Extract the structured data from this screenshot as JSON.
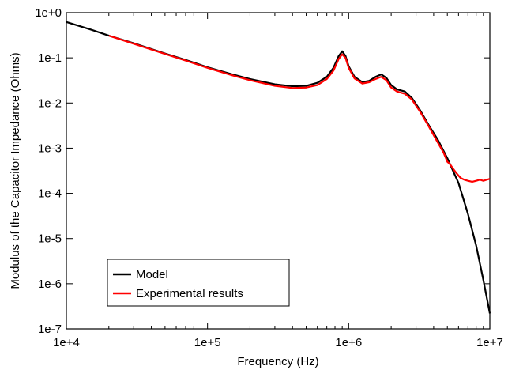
{
  "chart_data": {
    "type": "line",
    "title": "",
    "xlabel": "Frequency (Hz)",
    "ylabel": "Modulus of the Capacitor Impedance (Ohms)",
    "xscale": "log",
    "yscale": "log",
    "xlim": [
      10000,
      10000000
    ],
    "ylim": [
      1e-07,
      1
    ],
    "xticks": [
      {
        "value": 10000,
        "label": "1e+4"
      },
      {
        "value": 100000,
        "label": "1e+5"
      },
      {
        "value": 1000000,
        "label": "1e+6"
      },
      {
        "value": 10000000,
        "label": "1e+7"
      }
    ],
    "yticks": [
      {
        "value": 1e-07,
        "label": "1e-7"
      },
      {
        "value": 1e-06,
        "label": "1e-6"
      },
      {
        "value": 1e-05,
        "label": "1e-5"
      },
      {
        "value": 0.0001,
        "label": "1e-4"
      },
      {
        "value": 0.001,
        "label": "1e-3"
      },
      {
        "value": 0.01,
        "label": "1e-2"
      },
      {
        "value": 0.1,
        "label": "1e-1"
      },
      {
        "value": 1,
        "label": "1e+0"
      }
    ],
    "grid": false,
    "legend": {
      "position": "bottom-left"
    },
    "series": [
      {
        "name": "Model",
        "color": "#000000",
        "points": [
          [
            10000,
            0.62
          ],
          [
            12000,
            0.52
          ],
          [
            15000,
            0.42
          ],
          [
            20000,
            0.31
          ],
          [
            30000,
            0.21
          ],
          [
            50000,
            0.125
          ],
          [
            70000,
            0.09
          ],
          [
            100000,
            0.062
          ],
          [
            150000,
            0.043
          ],
          [
            200000,
            0.034
          ],
          [
            300000,
            0.026
          ],
          [
            400000,
            0.0235
          ],
          [
            500000,
            0.024
          ],
          [
            600000,
            0.028
          ],
          [
            700000,
            0.038
          ],
          [
            780000,
            0.06
          ],
          [
            850000,
            0.11
          ],
          [
            900000,
            0.14
          ],
          [
            950000,
            0.11
          ],
          [
            1000000,
            0.065
          ],
          [
            1100000,
            0.038
          ],
          [
            1250000,
            0.029
          ],
          [
            1400000,
            0.031
          ],
          [
            1550000,
            0.038
          ],
          [
            1700000,
            0.043
          ],
          [
            1850000,
            0.036
          ],
          [
            2000000,
            0.025
          ],
          [
            2200000,
            0.02
          ],
          [
            2500000,
            0.018
          ],
          [
            2800000,
            0.013
          ],
          [
            3200000,
            0.007
          ],
          [
            3700000,
            0.0032
          ],
          [
            4300000,
            0.0015
          ],
          [
            5000000,
            0.0006
          ],
          [
            6000000,
            0.00017
          ],
          [
            7000000,
            3.5e-05
          ],
          [
            8000000,
            7e-06
          ],
          [
            9000000,
            1.2e-06
          ],
          [
            10000000,
            2.2e-07
          ]
        ]
      },
      {
        "name": "Experimental results",
        "color": "#ff0000",
        "points": [
          [
            20000,
            0.31
          ],
          [
            30000,
            0.205
          ],
          [
            50000,
            0.122
          ],
          [
            70000,
            0.087
          ],
          [
            100000,
            0.06
          ],
          [
            150000,
            0.041
          ],
          [
            200000,
            0.032
          ],
          [
            300000,
            0.024
          ],
          [
            400000,
            0.0215
          ],
          [
            500000,
            0.022
          ],
          [
            600000,
            0.025
          ],
          [
            700000,
            0.034
          ],
          [
            780000,
            0.052
          ],
          [
            850000,
            0.095
          ],
          [
            900000,
            0.12
          ],
          [
            950000,
            0.1
          ],
          [
            1000000,
            0.06
          ],
          [
            1100000,
            0.035
          ],
          [
            1250000,
            0.027
          ],
          [
            1400000,
            0.029
          ],
          [
            1550000,
            0.034
          ],
          [
            1700000,
            0.038
          ],
          [
            1850000,
            0.032
          ],
          [
            2000000,
            0.022
          ],
          [
            2200000,
            0.018
          ],
          [
            2500000,
            0.016
          ],
          [
            2800000,
            0.012
          ],
          [
            3200000,
            0.0065
          ],
          [
            3700000,
            0.003
          ],
          [
            4300000,
            0.0013
          ],
          [
            4700000,
            0.0008
          ],
          [
            5000000,
            0.0005
          ],
          [
            5200000,
            0.00045
          ],
          [
            5500000,
            0.00035
          ],
          [
            5800000,
            0.00028
          ],
          [
            6200000,
            0.00022
          ],
          [
            6600000,
            0.0002
          ],
          [
            7000000,
            0.00019
          ],
          [
            7500000,
            0.00018
          ],
          [
            8000000,
            0.00019
          ],
          [
            8500000,
            0.0002
          ],
          [
            9000000,
            0.00019
          ],
          [
            9500000,
            0.0002
          ],
          [
            10000000,
            0.00021
          ]
        ]
      }
    ]
  }
}
